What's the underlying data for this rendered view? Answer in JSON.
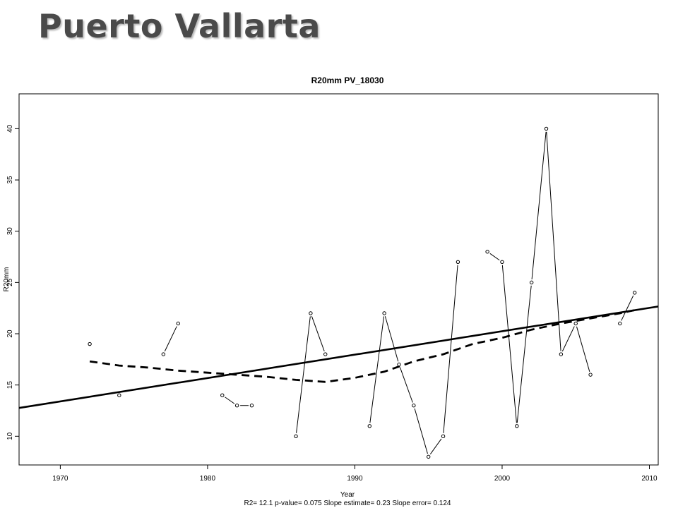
{
  "slide": {
    "title": "Puerto Vallarta"
  },
  "chart_data": {
    "type": "line",
    "title": "R20mm   PV_18030",
    "xlabel": "Year",
    "ylabel": "R20mm",
    "footer": "R2= 12.1  p-value= 0.075  Slope estimate= 0.23  Slope error= 0.124",
    "xlim": [
      1967.2,
      2010.6
    ],
    "ylim": [
      7.2,
      43.4
    ],
    "xticks": [
      1970,
      1980,
      1990,
      2000,
      2010
    ],
    "yticks": [
      10,
      15,
      20,
      25,
      30,
      35,
      40
    ],
    "grid": false,
    "series": [
      {
        "style": "points-and-lines",
        "x": [
          1972,
          1973,
          1974,
          1975,
          1976,
          1977,
          1978,
          1979,
          1980,
          1981,
          1982,
          1983,
          1984,
          1985,
          1986,
          1987,
          1988,
          1989,
          1990,
          1991,
          1992,
          1993,
          1994,
          1995,
          1996,
          1997,
          1998,
          1999,
          2000,
          2001,
          2002,
          2003,
          2004,
          2005,
          2006,
          2007,
          2008,
          2009
        ],
        "y": [
          19,
          null,
          14,
          null,
          null,
          18,
          21,
          null,
          null,
          14,
          13,
          13,
          null,
          null,
          10,
          22,
          18,
          null,
          null,
          11,
          22,
          17,
          13,
          8,
          10,
          27,
          null,
          28,
          27,
          11,
          25,
          40,
          18,
          21,
          16,
          null,
          21,
          24
        ]
      },
      {
        "style": "solid-trend",
        "x": [
          1967.2,
          2010.6
        ],
        "y": [
          12.76,
          22.66
        ]
      },
      {
        "style": "dashed-smooth",
        "x": [
          1972,
          1974,
          1976,
          1978,
          1980,
          1982,
          1984,
          1986,
          1988,
          1990,
          1992,
          1994,
          1996,
          1998,
          2000,
          2002,
          2004,
          2006,
          2008,
          2009
        ],
        "y": [
          17.3,
          16.9,
          16.7,
          16.4,
          16.2,
          16.0,
          15.8,
          15.5,
          15.3,
          15.7,
          16.3,
          17.3,
          18.0,
          19.0,
          19.6,
          20.4,
          21.0,
          21.5,
          22.0,
          22.3
        ]
      }
    ]
  }
}
